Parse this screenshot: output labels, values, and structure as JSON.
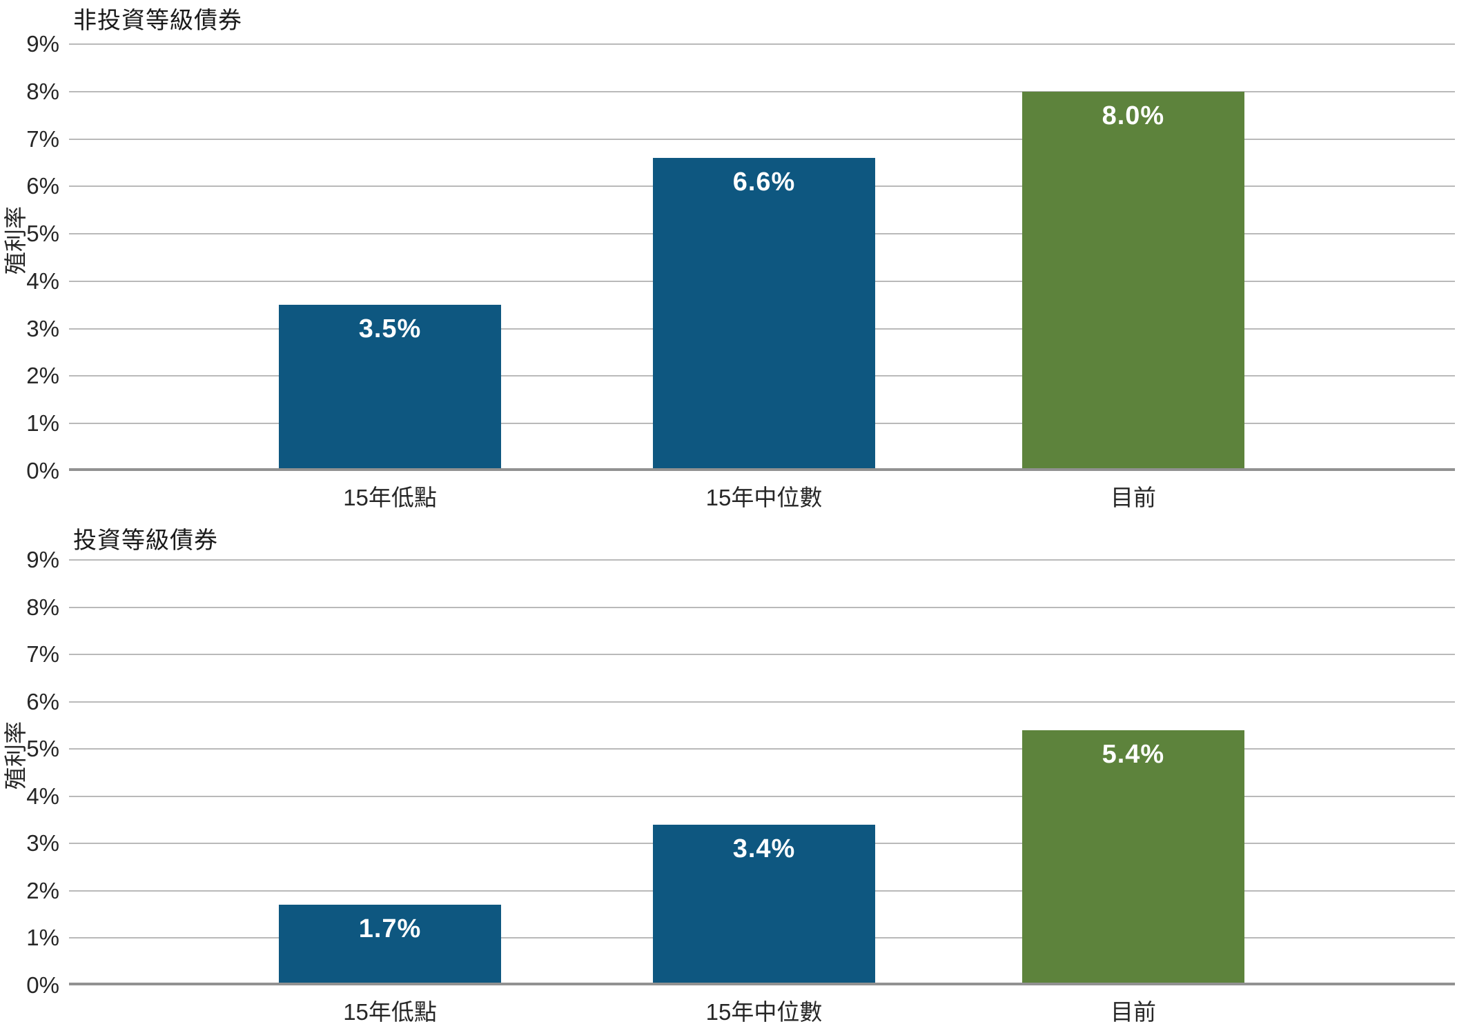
{
  "page": {
    "background": "#ffffff",
    "accent_blue": "#0E5780",
    "accent_green": "#5D833C",
    "gridline_color": "#b9b9b9",
    "axis_color": "#919191"
  },
  "chart_data": [
    {
      "type": "bar",
      "title": "非投資等級債券",
      "ylabel": "殖利率",
      "xlabel": "",
      "categories": [
        "15年低點",
        "15年中位數",
        "目前"
      ],
      "values": [
        3.5,
        6.6,
        8.0
      ],
      "value_labels": [
        "3.5%",
        "6.6%",
        "8.0%"
      ],
      "bar_colors": [
        "#0E5780",
        "#0E5780",
        "#5D833C"
      ],
      "ylim": [
        0,
        9
      ],
      "ytick_labels": [
        "0%",
        "1%",
        "2%",
        "3%",
        "4%",
        "5%",
        "6%",
        "7%",
        "8%",
        "9%"
      ],
      "layout": {
        "grid": true,
        "legend": "none",
        "bar_centers_pct": [
          23.16,
          50.15,
          76.79
        ],
        "bar_width_pct": 16.04
      }
    },
    {
      "type": "bar",
      "title": "投資等級債券",
      "ylabel": "殖利率",
      "xlabel": "",
      "categories": [
        "15年低點",
        "15年中位數",
        "目前"
      ],
      "values": [
        1.7,
        3.4,
        5.4
      ],
      "value_labels": [
        "1.7%",
        "3.4%",
        "5.4%"
      ],
      "bar_colors": [
        "#0E5780",
        "#0E5780",
        "#5D833C"
      ],
      "ylim": [
        0,
        9
      ],
      "ytick_labels": [
        "0%",
        "1%",
        "2%",
        "3%",
        "4%",
        "5%",
        "6%",
        "7%",
        "8%",
        "9%"
      ],
      "layout": {
        "grid": true,
        "legend": "none",
        "bar_centers_pct": [
          23.16,
          50.15,
          76.79
        ],
        "bar_width_pct": 16.04
      }
    }
  ]
}
